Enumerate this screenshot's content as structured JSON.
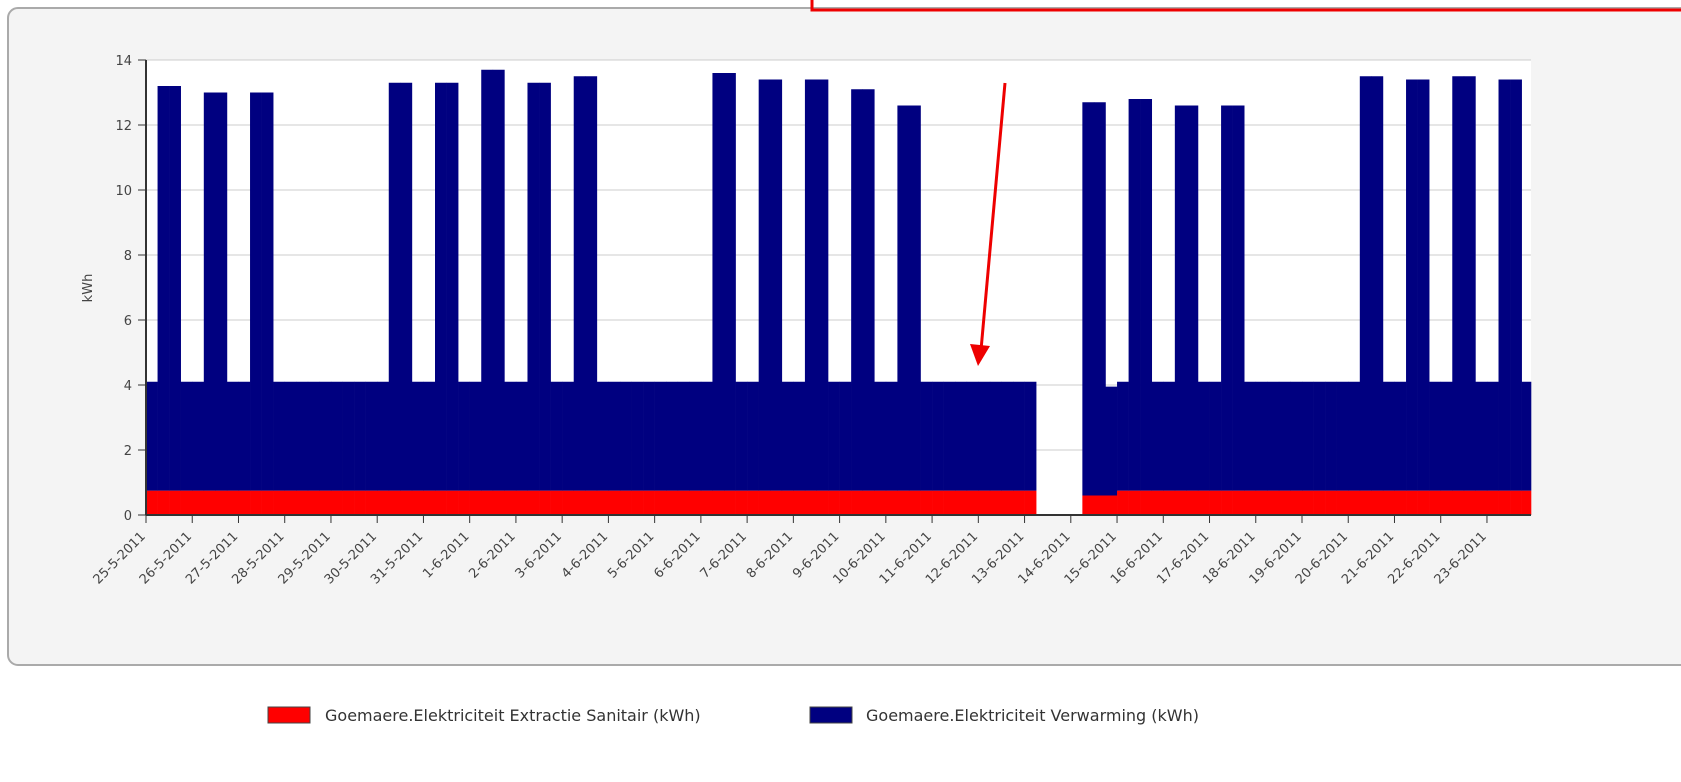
{
  "chart_data": {
    "type": "stacked-step-area",
    "y_label": "kWh",
    "categories": [
      "25-5-2011",
      "26-5-2011",
      "27-5-2011",
      "28-5-2011",
      "29-5-2011",
      "30-5-2011",
      "31-5-2011",
      "1-6-2011",
      "2-6-2011",
      "3-6-2011",
      "4-6-2011",
      "5-6-2011",
      "6-6-2011",
      "7-6-2011",
      "8-6-2011",
      "9-6-2011",
      "10-6-2011",
      "11-6-2011",
      "12-6-2011",
      "13-6-2011",
      "14-6-2011",
      "15-6-2011",
      "16-6-2011",
      "17-6-2011",
      "18-6-2011",
      "19-6-2011",
      "20-6-2011",
      "21-6-2011",
      "22-6-2011",
      "23-6-2011"
    ],
    "ylim": [
      0,
      14
    ],
    "yticks": [
      0,
      2,
      4,
      6,
      8,
      10,
      12,
      14
    ],
    "grid": true,
    "legend": "bottom",
    "series": [
      {
        "name": "Goemaere.Elektriciteit Extractie Sanitair (kWh)",
        "color": "#ff0000",
        "values": [
          [
            0.75,
            0.75,
            0.75,
            0.75
          ],
          [
            0.75,
            0.75,
            0.75,
            0.75
          ],
          [
            0.75,
            0.75,
            0.75,
            0.75
          ],
          [
            0.75,
            0.75,
            0.75,
            0.75
          ],
          [
            0.75,
            0.75,
            0.75,
            0.75
          ],
          [
            0.75,
            0.75,
            0.75,
            0.75
          ],
          [
            0.75,
            0.75,
            0.75,
            0.75
          ],
          [
            0.75,
            0.75,
            0.75,
            0.75
          ],
          [
            0.75,
            0.75,
            0.75,
            0.75
          ],
          [
            0.75,
            0.75,
            0.75,
            0.75
          ],
          [
            0.75,
            0.75,
            0.75,
            0.75
          ],
          [
            0.75,
            0.75,
            0.75,
            0.75
          ],
          [
            0.75,
            0.75,
            0.75,
            0.75
          ],
          [
            0.75,
            0.75,
            0.75,
            0.75
          ],
          [
            0.75,
            0.75,
            0.75,
            0.75
          ],
          [
            0.75,
            0.75,
            0.75,
            0.75
          ],
          [
            0.75,
            0.75,
            0.75,
            0.75
          ],
          [
            0.75,
            0.75,
            0.75,
            0.75
          ],
          [
            0.75,
            0.75,
            0.75,
            0.75
          ],
          [
            0.75,
            null,
            null,
            null
          ],
          [
            null,
            0.6,
            0.6,
            0.6
          ],
          [
            0.75,
            0.75,
            0.75,
            0.75
          ],
          [
            0.75,
            0.75,
            0.75,
            0.75
          ],
          [
            0.75,
            0.75,
            0.75,
            0.75
          ],
          [
            0.75,
            0.75,
            0.75,
            0.75
          ],
          [
            0.75,
            0.75,
            0.75,
            0.75
          ],
          [
            0.75,
            0.75,
            0.75,
            0.75
          ],
          [
            0.75,
            0.75,
            0.75,
            0.75
          ],
          [
            0.75,
            0.75,
            0.75,
            0.75
          ],
          [
            0.75,
            0.75,
            0.75,
            0.75
          ]
        ]
      },
      {
        "name": "Goemaere.Elektriciteit Verwarming (kWh)",
        "color": "#000080",
        "values": [
          [
            3.35,
            12.45,
            12.45,
            3.35
          ],
          [
            3.35,
            12.25,
            12.25,
            3.35
          ],
          [
            3.35,
            12.25,
            12.25,
            3.35
          ],
          [
            3.35,
            3.35,
            3.35,
            3.35
          ],
          [
            3.35,
            3.35,
            3.35,
            3.35
          ],
          [
            3.35,
            12.55,
            12.55,
            3.35
          ],
          [
            3.35,
            12.55,
            12.55,
            3.35
          ],
          [
            3.35,
            12.95,
            12.95,
            3.35
          ],
          [
            3.35,
            12.55,
            12.55,
            3.35
          ],
          [
            3.35,
            12.75,
            12.75,
            3.35
          ],
          [
            3.35,
            3.35,
            3.35,
            3.35
          ],
          [
            3.35,
            3.35,
            3.35,
            3.35
          ],
          [
            3.35,
            12.85,
            12.85,
            3.35
          ],
          [
            3.35,
            12.65,
            12.65,
            3.35
          ],
          [
            3.35,
            12.65,
            12.65,
            3.35
          ],
          [
            3.35,
            12.35,
            12.35,
            3.35
          ],
          [
            3.35,
            11.85,
            11.85,
            3.35
          ],
          [
            3.35,
            3.35,
            3.35,
            3.35
          ],
          [
            3.35,
            3.35,
            3.35,
            3.35
          ],
          [
            3.35,
            null,
            null,
            null
          ],
          [
            null,
            12.1,
            12.1,
            3.35
          ],
          [
            3.35,
            12.05,
            12.05,
            3.35
          ],
          [
            3.35,
            11.85,
            11.85,
            3.35
          ],
          [
            3.35,
            11.85,
            11.85,
            3.35
          ],
          [
            3.35,
            3.35,
            3.35,
            3.35
          ],
          [
            3.35,
            3.35,
            3.35,
            3.35
          ],
          [
            3.35,
            12.75,
            12.75,
            3.35
          ],
          [
            3.35,
            12.65,
            12.65,
            3.35
          ],
          [
            3.35,
            12.75,
            12.75,
            3.35
          ],
          [
            3.35,
            12.65,
            12.65,
            3.35
          ]
        ]
      }
    ]
  }
}
